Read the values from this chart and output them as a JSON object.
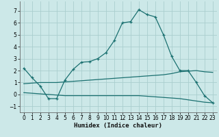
{
  "xlabel": "Humidex (Indice chaleur)",
  "xlim": [
    -0.5,
    23.5
  ],
  "ylim": [
    -1.5,
    7.8
  ],
  "yticks": [
    -1,
    0,
    1,
    2,
    3,
    4,
    5,
    6,
    7
  ],
  "xticks": [
    0,
    1,
    2,
    3,
    4,
    5,
    6,
    7,
    8,
    9,
    10,
    11,
    12,
    13,
    14,
    15,
    16,
    17,
    18,
    19,
    20,
    21,
    22,
    23
  ],
  "bg_color": "#cce8e8",
  "grid_color": "#aacece",
  "line_color": "#1a7070",
  "line1_x": [
    0,
    1,
    2,
    3,
    4,
    5,
    6,
    7,
    8,
    9,
    10,
    11,
    12,
    13,
    14,
    15,
    16,
    17,
    18,
    19,
    20,
    21,
    22,
    23
  ],
  "line1_y": [
    2.2,
    1.4,
    0.7,
    -0.35,
    -0.35,
    1.2,
    2.1,
    2.7,
    2.75,
    3.0,
    3.5,
    4.5,
    6.0,
    6.1,
    7.1,
    6.7,
    6.5,
    5.0,
    3.2,
    2.0,
    2.0,
    1.0,
    -0.1,
    -0.7
  ],
  "line2_x": [
    0,
    1,
    2,
    3,
    4,
    5,
    6,
    7,
    8,
    9,
    10,
    11,
    12,
    13,
    14,
    15,
    16,
    17,
    18,
    19,
    20,
    21,
    22,
    23
  ],
  "line2_y": [
    0.9,
    0.95,
    1.0,
    1.0,
    1.0,
    1.05,
    1.1,
    1.15,
    1.2,
    1.25,
    1.3,
    1.35,
    1.4,
    1.45,
    1.5,
    1.55,
    1.6,
    1.65,
    1.75,
    1.9,
    1.95,
    2.0,
    1.9,
    1.85
  ],
  "line3_x": [
    0,
    1,
    2,
    3,
    4,
    5,
    6,
    7,
    8,
    9,
    10,
    11,
    12,
    13,
    14,
    15,
    16,
    17,
    18,
    19,
    20,
    21,
    22,
    23
  ],
  "line3_y": [
    0.15,
    0.1,
    0.05,
    0.0,
    -0.05,
    -0.1,
    -0.1,
    -0.1,
    -0.1,
    -0.1,
    -0.1,
    -0.1,
    -0.1,
    -0.1,
    -0.1,
    -0.15,
    -0.2,
    -0.25,
    -0.3,
    -0.35,
    -0.45,
    -0.55,
    -0.65,
    -0.7
  ]
}
